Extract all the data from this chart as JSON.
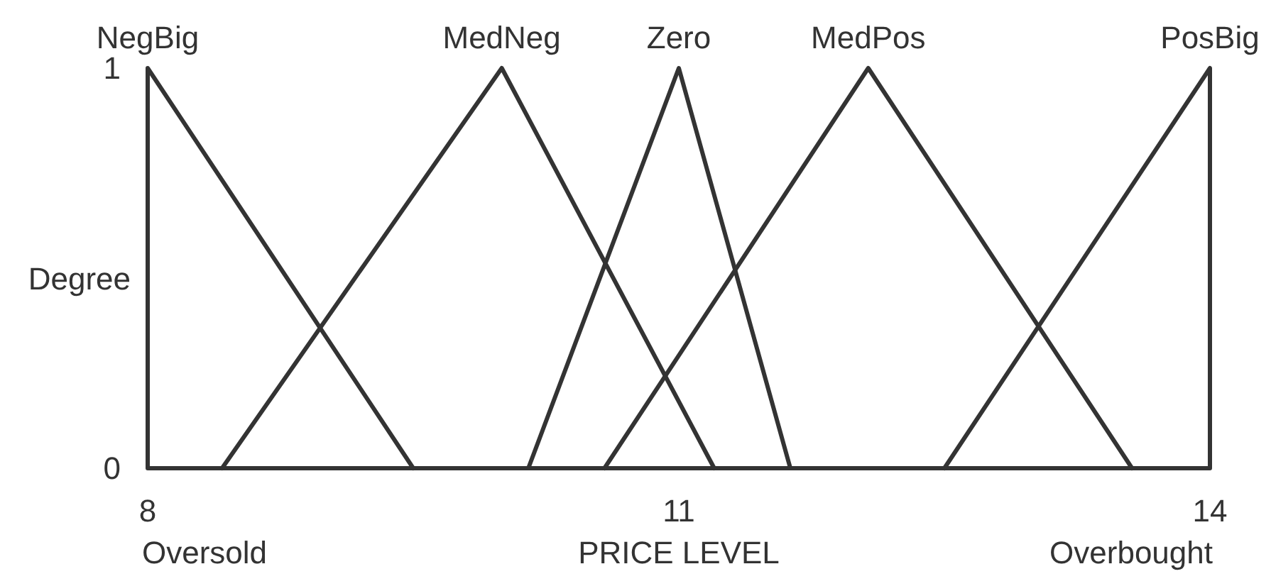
{
  "chart_data": {
    "type": "line",
    "xlabel": "PRICE LEVEL",
    "ylabel": "Degree",
    "xlim": [
      8,
      14
    ],
    "ylim": [
      0,
      1
    ],
    "xticks": [
      8,
      11,
      14
    ],
    "yticks": [
      0,
      1
    ],
    "line_style": "solid",
    "series": [
      {
        "name": "NegBig",
        "color": "#333333",
        "x": [
          8,
          8,
          9.5
        ],
        "values": [
          0,
          1,
          0
        ]
      },
      {
        "name": "MedNeg",
        "color": "#333333",
        "x": [
          8.42,
          10,
          11.2
        ],
        "values": [
          0,
          1,
          0
        ]
      },
      {
        "name": "Zero",
        "color": "#333333",
        "x": [
          10.15,
          11,
          11.63
        ],
        "values": [
          0,
          1,
          0
        ]
      },
      {
        "name": "MedPos",
        "color": "#333333",
        "x": [
          10.58,
          12.07,
          13.56
        ],
        "values": [
          0,
          1,
          0
        ]
      },
      {
        "name": "PosBig",
        "color": "#333333",
        "x": [
          12.5,
          14,
          14
        ],
        "values": [
          0,
          1,
          0
        ]
      }
    ],
    "annotations": [
      "Oversold",
      "Overbought"
    ]
  }
}
